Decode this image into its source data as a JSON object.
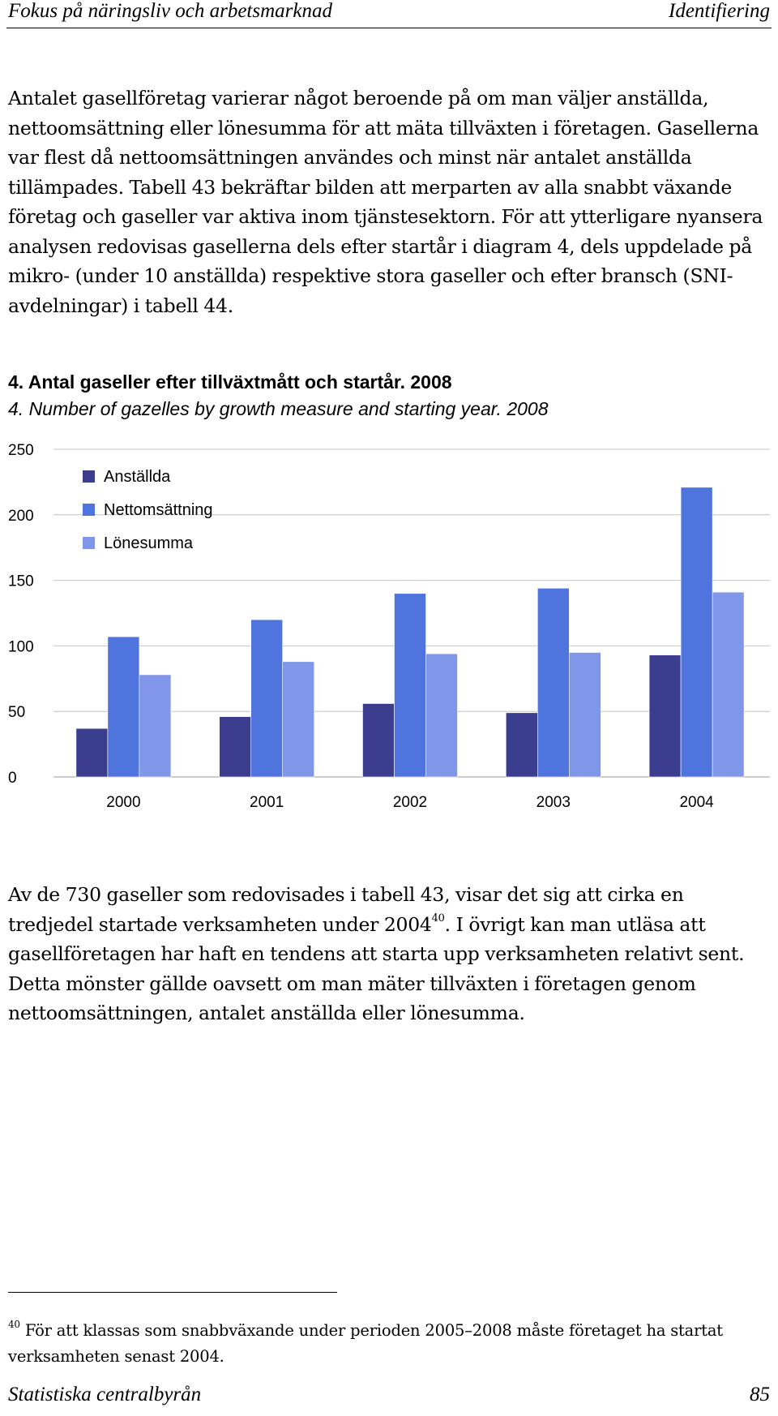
{
  "header": {
    "left": "Fokus på näringsliv och arbetsmarknad",
    "right": "Identifiering"
  },
  "paragraphs": {
    "p1": "Antalet gasellföretag varierar något beroende på om man väljer anställda, nettoomsättning eller lönesumma för att mäta tillväxten i företagen. Gasellerna var flest då nettoomsättningen användes och minst när antalet anställda tillämpades. Tabell 43 bekräftar bilden att merparten av alla snabbt växande företag och gaseller var aktiva inom tjänstesektorn. För att ytterligare nyansera analysen redovisas gasellerna dels efter startår i diagram 4, dels uppdelade på mikro- (under 10 anställda) respektive stora gaseller och efter bransch (SNI-avdelningar) i tabell 44.",
    "p2_before": "Av de 730 gaseller som redovisades i tabell 43, visar det sig att cirka en tredjedel startade verksamheten under 2004",
    "p2_footnote_ref": "40",
    "p2_after": ". I övrigt kan man utläsa att gasellföretagen har haft en tendens att starta upp verksamheten relativt sent. Detta mönster gällde oavsett om man mäter tillväxten i företagen genom nettoomsättningen, antalet anställda eller lönesumma."
  },
  "chart_data": {
    "type": "bar",
    "title": "4. Antal gaseller efter tillväxtmått och startår. 2008",
    "subtitle": "4. Number of gazelles by growth measure and starting year. 2008",
    "xlabel": "",
    "ylabel": "",
    "categories": [
      "2000",
      "2001",
      "2002",
      "2003",
      "2004"
    ],
    "series": [
      {
        "name": "Anställda",
        "color": "#3b3d8f",
        "values": [
          37,
          46,
          56,
          49,
          93
        ]
      },
      {
        "name": "Nettomsättning",
        "color": "#5074de",
        "values": [
          107,
          120,
          140,
          144,
          221
        ]
      },
      {
        "name": "Lönesumma",
        "color": "#8096e8",
        "values": [
          78,
          88,
          94,
          95,
          141
        ]
      }
    ],
    "ylim": [
      0,
      250
    ],
    "yticks": [
      "0",
      "50",
      "100",
      "150",
      "200",
      "250"
    ],
    "grid": true,
    "legend": "top-left"
  },
  "footnote": {
    "marker": "40",
    "text": "För att klassas som snabbväxande under perioden 2005–2008 måste företaget ha startat verksamheten senast 2004."
  },
  "footer": {
    "left": "Statistiska centralbyrån",
    "right": "85"
  }
}
